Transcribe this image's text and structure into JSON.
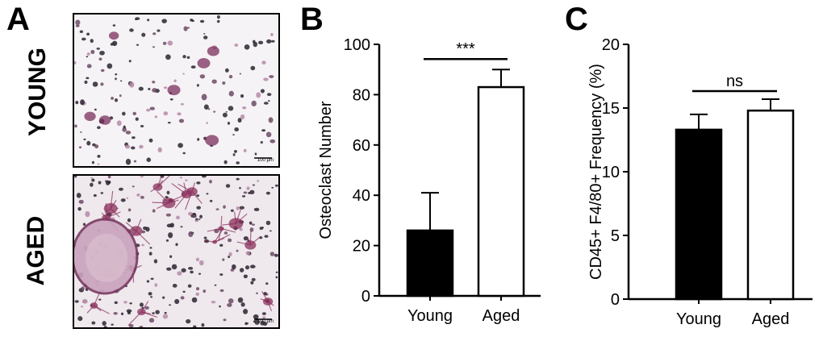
{
  "figure": {
    "panel_a_letter": "A",
    "panel_b_letter": "B",
    "panel_c_letter": "C",
    "micrographs": [
      {
        "label": "YOUNG",
        "scale_bar_text": "100 µm",
        "stain_color": "#7a2f5c",
        "density": "sparse"
      },
      {
        "label": "AGED",
        "scale_bar_text": "100 µm",
        "stain_color": "#8a2e5a",
        "density": "dense"
      }
    ]
  },
  "chart_data": [
    {
      "type": "bar",
      "panel": "B",
      "categories": [
        "Young",
        "Aged"
      ],
      "values": [
        26,
        83
      ],
      "errors": [
        15,
        7
      ],
      "bar_fill": [
        "#000000",
        "#ffffff"
      ],
      "xlabel": "",
      "ylabel": "Osteoclast Number",
      "ylim": [
        0,
        100
      ],
      "yticks": [
        0,
        20,
        40,
        60,
        80,
        100
      ],
      "significance": "***",
      "grid": false
    },
    {
      "type": "bar",
      "panel": "C",
      "categories": [
        "Young",
        "Aged"
      ],
      "values": [
        13.3,
        14.8
      ],
      "errors": [
        1.2,
        0.9
      ],
      "bar_fill": [
        "#000000",
        "#ffffff"
      ],
      "xlabel": "",
      "ylabel": "CD45+ F4/80+ Frequency (%)",
      "ylim": [
        0,
        20
      ],
      "yticks": [
        0,
        5,
        10,
        15,
        20
      ],
      "significance": "ns",
      "grid": false
    }
  ]
}
